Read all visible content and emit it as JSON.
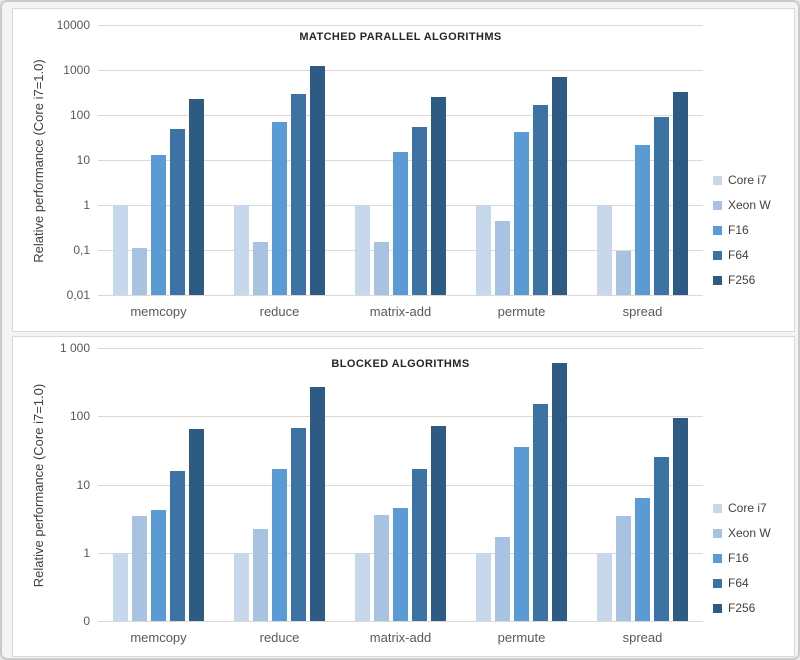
{
  "page": {
    "background": "#f4f4f4",
    "panel_background": "#ffffff",
    "panel_border": "#d9d9d9",
    "gridline_color": "#d9d9d9"
  },
  "chart_data": [
    {
      "type": "bar",
      "title": "MATCHED PARALLEL ALGORITHMS",
      "ylabel": "Relative performance (Core i7=1.0)",
      "yscale": "log",
      "ylim": [
        0.01,
        10000
      ],
      "ytick_labels": [
        "10000",
        "1000",
        "100",
        "10",
        "1",
        "0,1",
        "0,01"
      ],
      "grid": true,
      "legend_position": "right",
      "categories": [
        "memcopy",
        "reduce",
        "matrix-add",
        "permute",
        "spread"
      ],
      "series": [
        {
          "name": "Core i7",
          "color": "#c8d8ec",
          "values": [
            1.0,
            1.0,
            1.0,
            1.0,
            1.0
          ]
        },
        {
          "name": "Xeon W",
          "color": "#a8c3e2",
          "values": [
            0.11,
            0.15,
            0.15,
            0.45,
            0.095
          ]
        },
        {
          "name": "F16",
          "color": "#5b9bd5",
          "values": [
            13,
            70,
            15,
            42,
            22
          ]
        },
        {
          "name": "F64",
          "color": "#3d72a4",
          "values": [
            50,
            300,
            55,
            165,
            90
          ]
        },
        {
          "name": "F256",
          "color": "#2e5b84",
          "values": [
            230,
            1200,
            250,
            700,
            330
          ]
        }
      ]
    },
    {
      "type": "bar",
      "title": "BLOCKED ALGORITHMS",
      "ylabel": "Relative performance (Core i7=1.0)",
      "yscale": "log",
      "ylim": [
        0.1,
        1000
      ],
      "ytick_labels": [
        "1 000",
        "100",
        "10",
        "1",
        "0"
      ],
      "grid": true,
      "legend_position": "right",
      "categories": [
        "memcopy",
        "reduce",
        "matrix-add",
        "permute",
        "spread"
      ],
      "series": [
        {
          "name": "Core i7",
          "color": "#c8d8ec",
          "values": [
            1.0,
            1.0,
            1.0,
            1.0,
            1.0
          ]
        },
        {
          "name": "Xeon W",
          "color": "#a8c3e2",
          "values": [
            3.5,
            2.2,
            3.6,
            1.7,
            3.5
          ]
        },
        {
          "name": "F16",
          "color": "#5b9bd5",
          "values": [
            4.3,
            17,
            4.5,
            36,
            6.3
          ]
        },
        {
          "name": "F64",
          "color": "#3d72a4",
          "values": [
            16,
            68,
            17,
            150,
            25
          ]
        },
        {
          "name": "F256",
          "color": "#2e5b84",
          "values": [
            65,
            270,
            72,
            600,
            95
          ]
        }
      ]
    }
  ]
}
